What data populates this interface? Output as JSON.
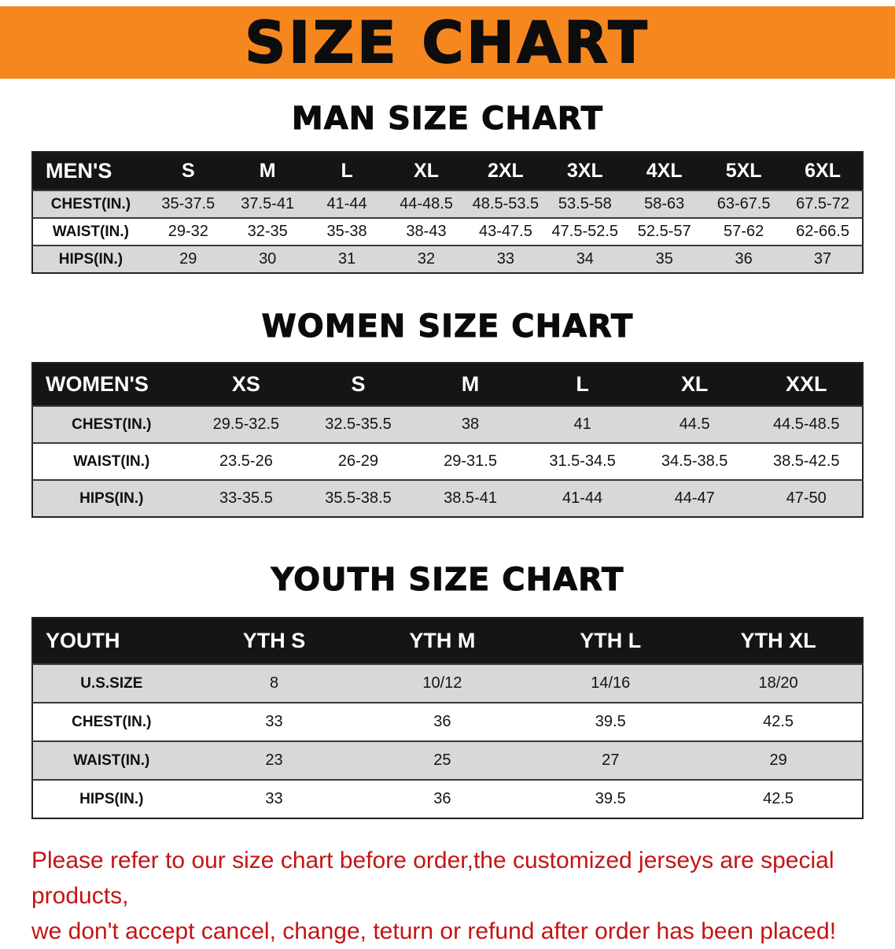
{
  "banner": {
    "title": "SIZE CHART",
    "bg_color": "#f6871f",
    "text_color": "#0d0d0d"
  },
  "sections": [
    {
      "id": "men",
      "heading": "MAN SIZE CHART",
      "table": {
        "header": [
          "MEN'S",
          "S",
          "M",
          "L",
          "XL",
          "2XL",
          "3XL",
          "4XL",
          "5XL",
          "6XL"
        ],
        "rows": [
          {
            "label": "CHEST(IN.)",
            "values": [
              "35-37.5",
              "37.5-41",
              "41-44",
              "44-48.5",
              "48.5-53.5",
              "53.5-58",
              "58-63",
              "63-67.5",
              "67.5-72"
            ]
          },
          {
            "label": "WAIST(IN.)",
            "values": [
              "29-32",
              "32-35",
              "35-38",
              "38-43",
              "43-47.5",
              "47.5-52.5",
              "52.5-57",
              "57-62",
              "62-66.5"
            ]
          },
          {
            "label": "HIPS(IN.)",
            "values": [
              "29",
              "30",
              "31",
              "32",
              "33",
              "34",
              "35",
              "36",
              "37"
            ]
          }
        ]
      }
    },
    {
      "id": "women",
      "heading": "WOMEN SIZE CHART",
      "table": {
        "header": [
          "WOMEN'S",
          "XS",
          "S",
          "M",
          "L",
          "XL",
          "XXL"
        ],
        "rows": [
          {
            "label": "CHEST(IN.)",
            "values": [
              "29.5-32.5",
              "32.5-35.5",
              "38",
              "41",
              "44.5",
              "44.5-48.5"
            ]
          },
          {
            "label": "WAIST(IN.)",
            "values": [
              "23.5-26",
              "26-29",
              "29-31.5",
              "31.5-34.5",
              "34.5-38.5",
              "38.5-42.5"
            ]
          },
          {
            "label": "HIPS(IN.)",
            "values": [
              "33-35.5",
              "35.5-38.5",
              "38.5-41",
              "41-44",
              "44-47",
              "47-50"
            ]
          }
        ]
      }
    },
    {
      "id": "youth",
      "heading": "YOUTH SIZE CHART",
      "table": {
        "header": [
          "YOUTH",
          "YTH S",
          "YTH M",
          "YTH L",
          "YTH XL"
        ],
        "rows": [
          {
            "label": "U.S.SIZE",
            "values": [
              "8",
              "10/12",
              "14/16",
              "18/20"
            ]
          },
          {
            "label": "CHEST(IN.)",
            "values": [
              "33",
              "36",
              "39.5",
              "42.5"
            ]
          },
          {
            "label": "WAIST(IN.)",
            "values": [
              "23",
              "25",
              "27",
              "29"
            ]
          },
          {
            "label": "HIPS(IN.)",
            "values": [
              "33",
              "36",
              "39.5",
              "42.5"
            ]
          }
        ]
      }
    }
  ],
  "disclaimer": {
    "color": "#c41414",
    "lines": [
      "Please refer to our size chart before order,the customized jerseys are special products,",
      "we don't accept cancel, change, teturn or refund after order has been placed!"
    ]
  }
}
